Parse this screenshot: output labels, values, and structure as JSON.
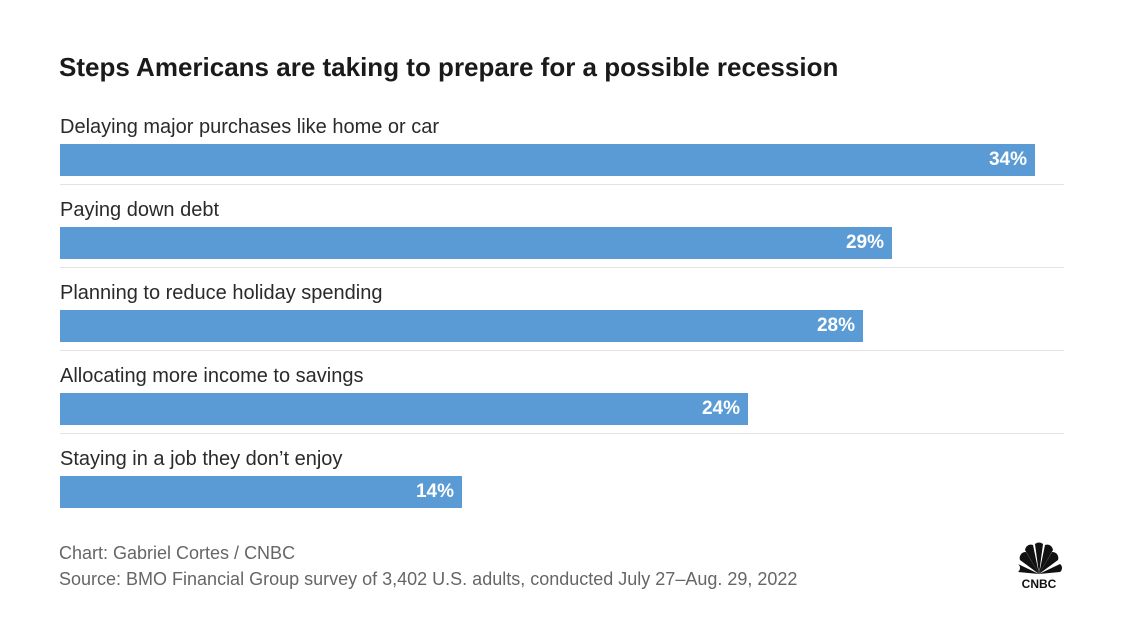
{
  "chart_data": {
    "type": "bar",
    "orientation": "horizontal",
    "title": "Steps Americans are taking to prepare for a possible recession",
    "categories": [
      "Delaying major purchases like home or car",
      "Paying down debt",
      "Planning to reduce holiday spending",
      "Allocating more income to savings",
      "Staying in a job they don’t enjoy"
    ],
    "values": [
      34,
      29,
      28,
      24,
      14
    ],
    "value_labels": [
      "34%",
      "29%",
      "28%",
      "24%",
      "14%"
    ],
    "xlim": [
      0,
      35
    ],
    "grid": false,
    "bar_color": "#5b9bd5"
  },
  "footer": {
    "credit": "Chart: Gabriel Cortes / CNBC",
    "source": "Source: BMO Financial Group survey of 3,402 U.S. adults, conducted July 27–Aug. 29, 2022"
  },
  "logo": {
    "icon": "cnbc-peacock-logo",
    "text": "CNBC"
  }
}
